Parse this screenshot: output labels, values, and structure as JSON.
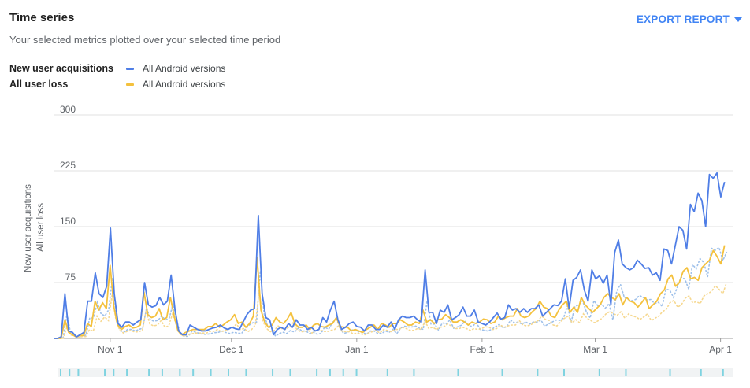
{
  "header": {
    "title": "Time series",
    "subtitle": "Your selected metrics plotted over your selected time period",
    "export_label": "EXPORT REPORT"
  },
  "legend": [
    {
      "metric": "New user acquisitions",
      "series": "All Android versions",
      "color": "#4f7ee6"
    },
    {
      "metric": "All user loss",
      "series": "All Android versions",
      "color": "#f4c13d"
    }
  ],
  "colors": {
    "blue": "#4f7ee6",
    "yellow": "#f4c13d",
    "blue_dotted": "#9ec0ea",
    "yellow_dotted": "#f6d890",
    "marker": "#7fd3e0"
  },
  "chart_data": {
    "type": "line",
    "ylabels": [
      "New user acquisitions",
      "All user loss"
    ],
    "ylim": [
      0,
      300
    ],
    "yticks": [
      0,
      75,
      150,
      225,
      300
    ],
    "ytick_labels": [
      "",
      "75",
      "150",
      "225",
      "300"
    ],
    "xtick_labels": [
      "Nov 1",
      "Dec 1",
      "Jan 1",
      "Feb 1",
      "Mar 1",
      "Apr 1"
    ],
    "xtick_days": [
      0,
      30,
      61,
      92,
      120,
      151
    ],
    "x_range_days": [
      -14,
      154
    ],
    "grid": true,
    "series": [
      {
        "name": "New user acquisitions",
        "values": [
          0,
          0,
          2,
          60,
          10,
          8,
          2,
          5,
          8,
          50,
          50,
          88,
          60,
          55,
          70,
          148,
          60,
          20,
          15,
          22,
          22,
          18,
          22,
          25,
          75,
          45,
          42,
          44,
          55,
          45,
          50,
          85,
          40,
          10,
          5,
          5,
          18,
          15,
          12,
          10,
          10,
          12,
          14,
          15,
          18,
          14,
          12,
          15,
          13,
          12,
          22,
          32,
          38,
          40,
          165,
          60,
          28,
          25,
          5,
          12,
          15,
          12,
          20,
          15,
          25,
          18,
          18,
          12,
          15,
          10,
          12,
          28,
          22,
          38,
          50,
          25,
          12,
          15,
          20,
          22,
          16,
          15,
          10,
          18,
          18,
          12,
          12,
          18,
          15,
          22,
          12,
          25,
          30,
          28,
          28,
          30,
          25,
          22,
          92,
          35,
          35,
          20,
          38,
          35,
          45,
          25,
          28,
          32,
          42,
          30,
          30,
          38,
          22,
          20,
          18,
          22,
          28,
          34,
          26,
          28,
          45,
          38,
          40,
          35,
          40,
          35,
          40,
          40,
          45,
          30,
          35,
          40,
          45,
          44,
          50,
          80,
          40,
          78,
          82,
          92,
          65,
          50,
          92,
          80,
          84,
          74,
          85,
          45,
          115,
          132,
          100,
          95,
          92,
          95,
          105,
          100,
          94,
          95,
          85,
          88,
          78,
          120,
          118,
          100,
          125,
          150,
          145,
          120,
          180,
          170,
          195,
          185,
          150,
          220,
          215,
          222,
          190,
          210
        ],
        "style": "solid",
        "color": "#4f7ee6"
      },
      {
        "name": "All user loss",
        "values": [
          0,
          0,
          0,
          25,
          8,
          5,
          2,
          4,
          4,
          20,
          16,
          50,
          38,
          48,
          40,
          98,
          42,
          18,
          12,
          16,
          18,
          14,
          15,
          18,
          62,
          32,
          28,
          30,
          40,
          25,
          28,
          55,
          30,
          10,
          5,
          8,
          10,
          12,
          12,
          12,
          12,
          16,
          16,
          20,
          15,
          18,
          22,
          25,
          32,
          20,
          22,
          15,
          20,
          30,
          108,
          38,
          22,
          15,
          18,
          28,
          22,
          20,
          26,
          35,
          20,
          15,
          15,
          18,
          12,
          18,
          20,
          16,
          15,
          18,
          20,
          28,
          16,
          15,
          15,
          10,
          12,
          10,
          8,
          12,
          15,
          18,
          12,
          20,
          18,
          15,
          20,
          20,
          25,
          22,
          18,
          18,
          22,
          20,
          38,
          22,
          25,
          20,
          25,
          26,
          32,
          28,
          22,
          22,
          25,
          22,
          18,
          22,
          20,
          22,
          26,
          25,
          20,
          22,
          30,
          25,
          28,
          30,
          30,
          40,
          30,
          28,
          30,
          36,
          40,
          50,
          42,
          40,
          30,
          28,
          38,
          45,
          50,
          35,
          42,
          35,
          55,
          45,
          40,
          35,
          40,
          45,
          55,
          60,
          55,
          52,
          60,
          45,
          55,
          50,
          48,
          42,
          48,
          55,
          40,
          45,
          50,
          60,
          65,
          80,
          85,
          70,
          75,
          90,
          95,
          80,
          82,
          78,
          95,
          100,
          105,
          118,
          110,
          100,
          125
        ],
        "style": "solid",
        "color": "#f4c13d"
      }
    ]
  },
  "scrubber": {
    "marker_count": 30
  }
}
